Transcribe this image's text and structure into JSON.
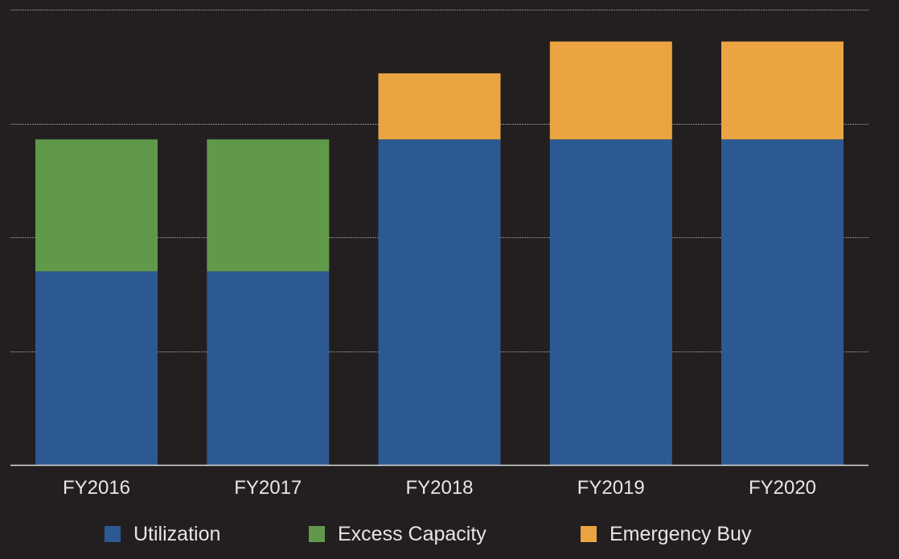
{
  "colors": {
    "background": "#231f20",
    "utilization": "#2d5993",
    "excess_capacity": "#61994b",
    "emergency_buy": "#eaa441",
    "gridline": "#8a8a8a",
    "axis": "#d9d9d9",
    "text": "#e6e6e6"
  },
  "chart_data": {
    "type": "bar",
    "stacked": true,
    "title": "",
    "xlabel": "",
    "ylabel": "",
    "categories": [
      "FY2016",
      "FY2017",
      "FY2018",
      "FY2019",
      "FY2020"
    ],
    "ylim": [
      0,
      200
    ],
    "y_gridlines": [
      50,
      100,
      150,
      200
    ],
    "grid": true,
    "legend_position": "bottom",
    "series": [
      {
        "name": "Utilization",
        "color_key": "utilization",
        "values": [
          85,
          85,
          143,
          143,
          143
        ]
      },
      {
        "name": "Excess Capacity",
        "color_key": "excess_capacity",
        "values": [
          58,
          58,
          0,
          0,
          0
        ]
      },
      {
        "name": "Emergency Buy",
        "color_key": "emergency_buy",
        "values": [
          0,
          0,
          29,
          43,
          43
        ]
      }
    ]
  },
  "legend": {
    "items": [
      {
        "label": "Utilization",
        "color_key": "utilization"
      },
      {
        "label": "Excess Capacity",
        "color_key": "excess_capacity"
      },
      {
        "label": "Emergency Buy",
        "color_key": "emergency_buy"
      }
    ]
  }
}
